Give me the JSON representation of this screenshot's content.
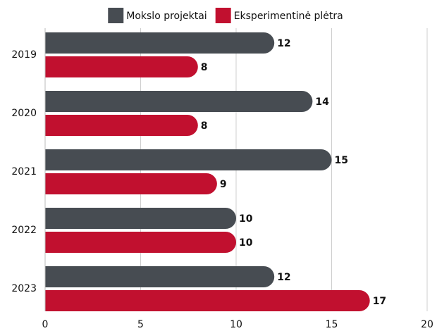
{
  "chart_data": {
    "type": "bar",
    "orientation": "horizontal",
    "categories": [
      "2019",
      "2020",
      "2021",
      "2022",
      "2023"
    ],
    "series": [
      {
        "name": "Mokslo projektai",
        "color": "#474c52",
        "values": [
          12,
          14,
          15,
          10,
          12
        ]
      },
      {
        "name": "Eksperimentinė plėtra",
        "color": "#c1102f",
        "values": [
          8,
          8,
          9,
          10,
          17
        ]
      }
    ],
    "xlim": [
      0,
      20
    ],
    "xticks": [
      0,
      5,
      10,
      15,
      20
    ],
    "grid": true,
    "legend": "top"
  }
}
